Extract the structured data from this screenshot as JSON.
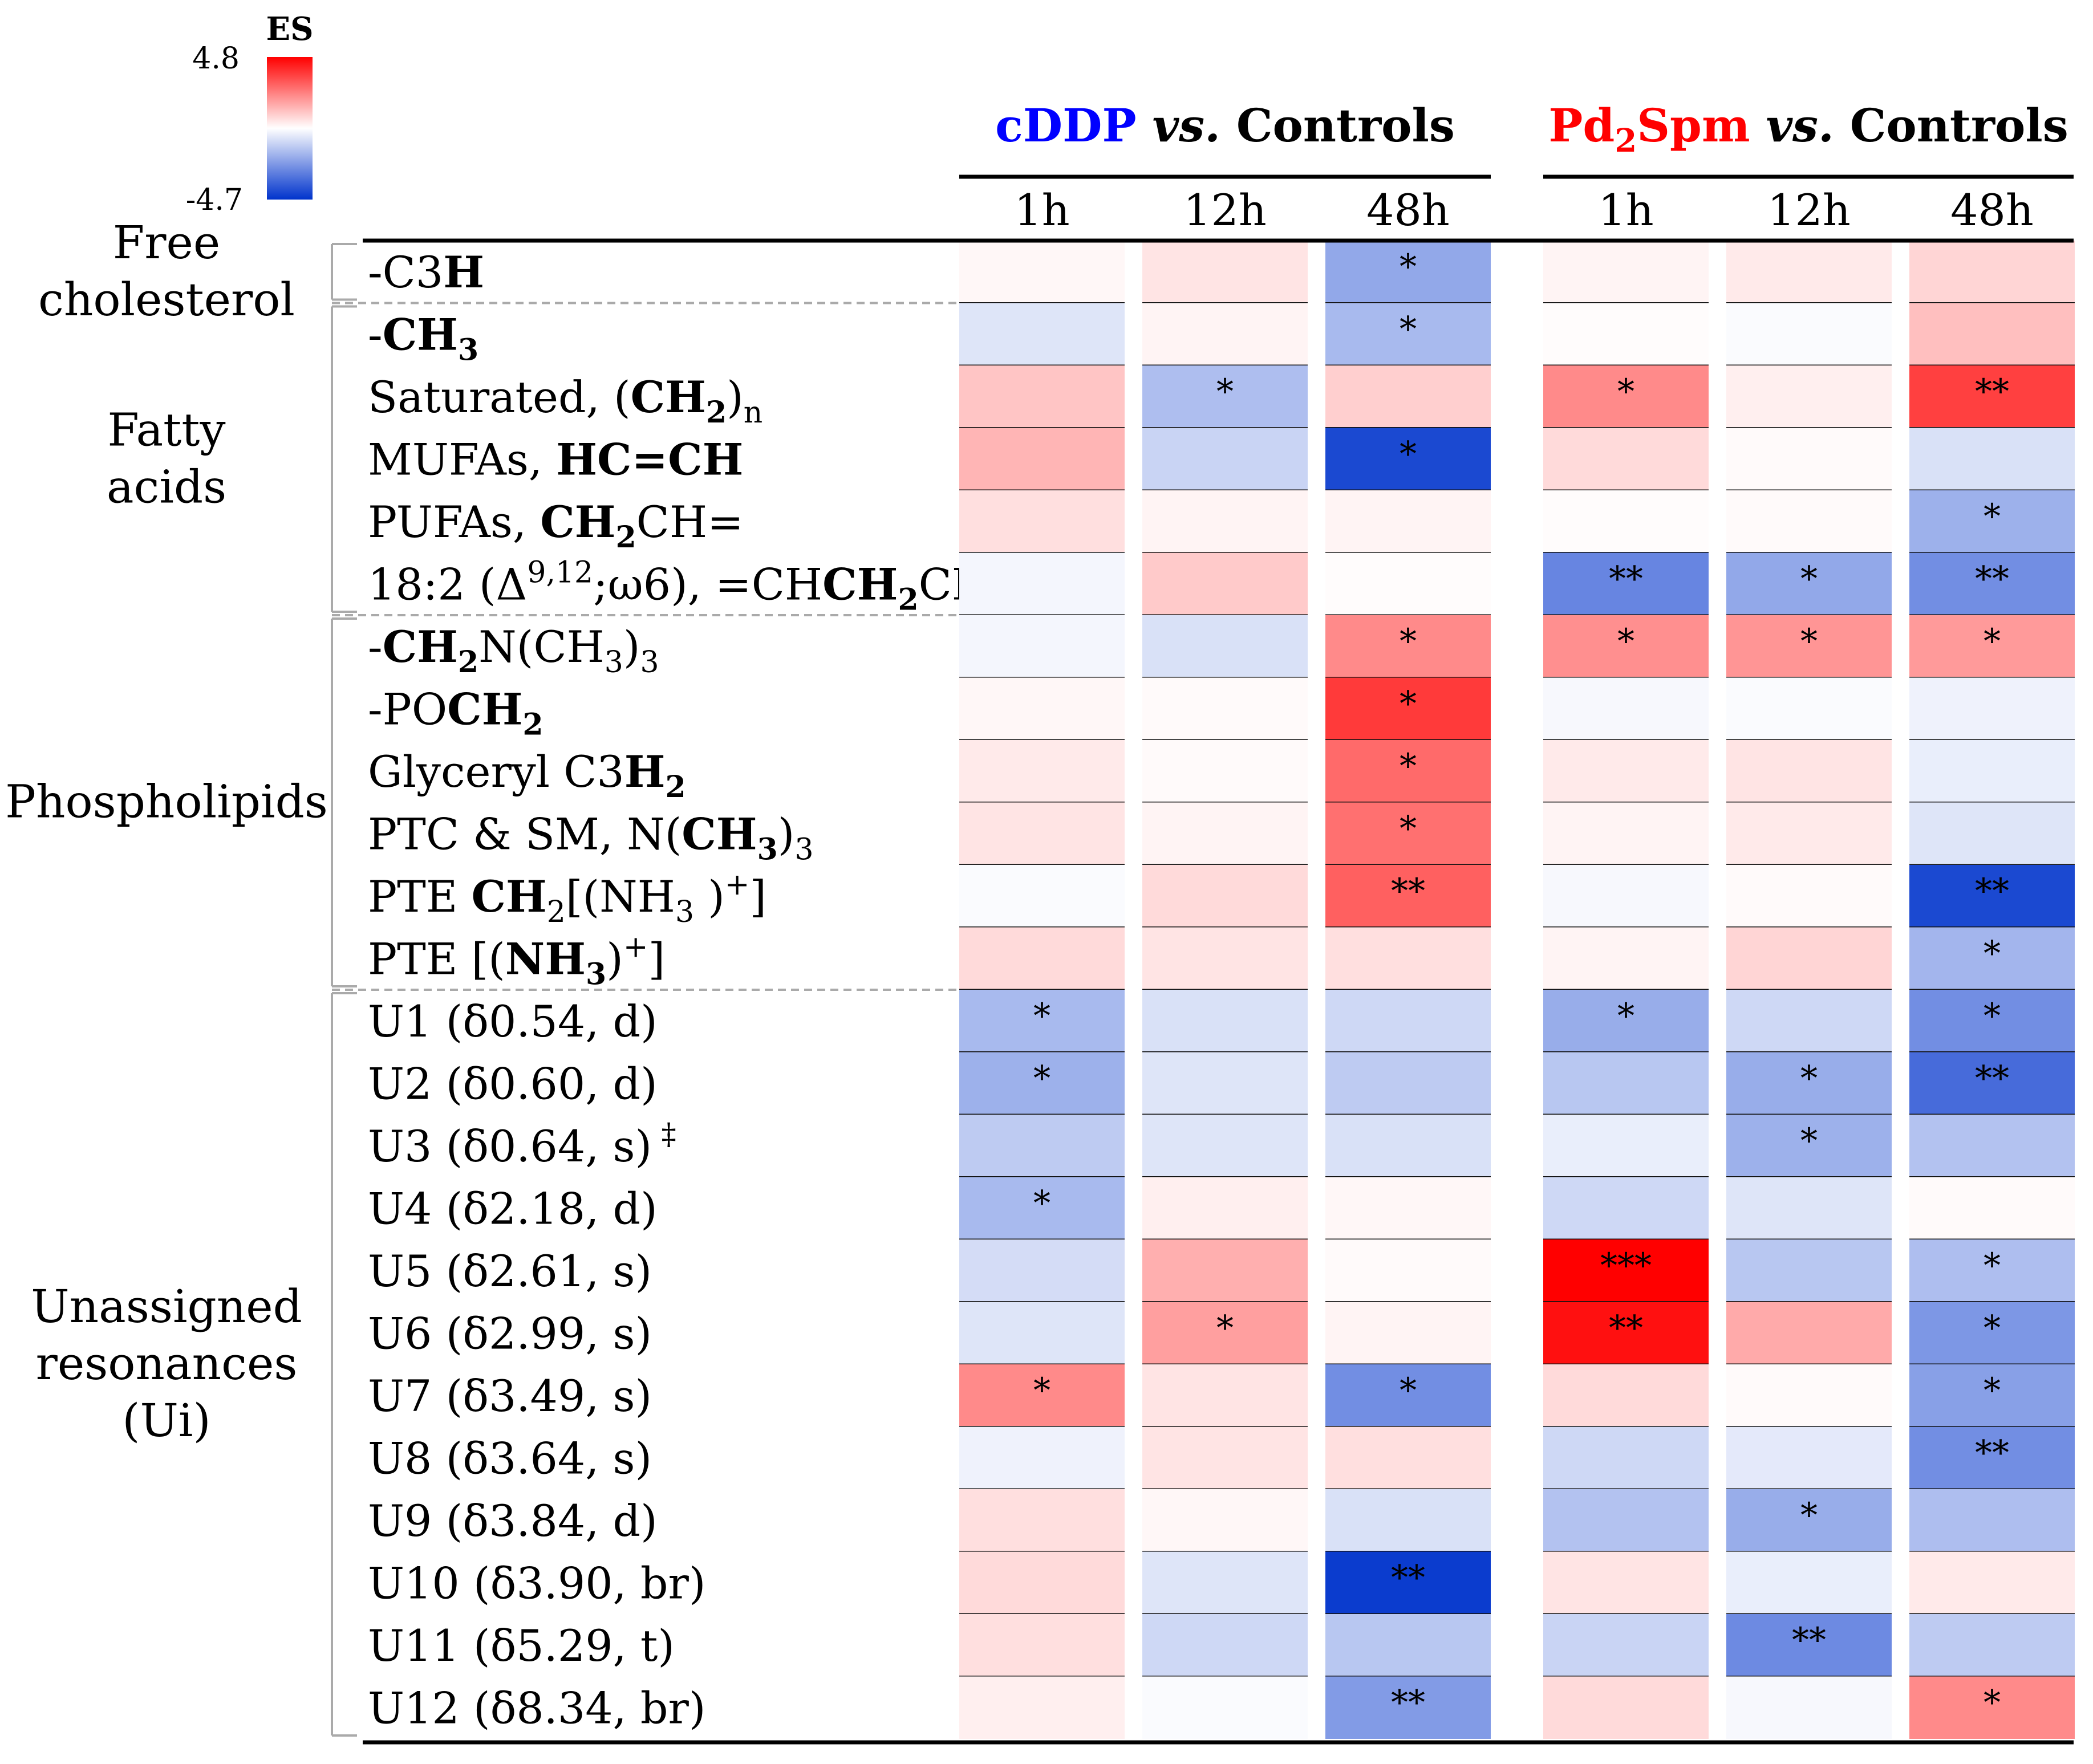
{
  "chart_data": {
    "type": "heatmap",
    "legend": {
      "title": "ES",
      "max": 4.8,
      "min": -4.7,
      "max_label": "4.8",
      "min_label": "-4.7",
      "colors": {
        "high": "#ff0000",
        "mid": "#ffffff",
        "low": "#0033cc"
      }
    },
    "groups": [
      {
        "drug": "cDDP",
        "sep": "vs.",
        "ref": "Controls",
        "drug_color": "#0000ff",
        "columns": [
          "1h",
          "12h",
          "48h"
        ]
      },
      {
        "drug": "Pd",
        "drug_sub": "2",
        "drug_rest": "Spm",
        "sep": "vs.",
        "ref": "Controls",
        "drug_color": "#ff0000",
        "columns": [
          "1h",
          "12h",
          "48h"
        ]
      }
    ],
    "categories": [
      {
        "lines": [
          "Free",
          "cholesterol"
        ],
        "rows": [
          0,
          0
        ]
      },
      {
        "lines": [
          "Fatty",
          "acids"
        ],
        "rows": [
          1,
          5
        ]
      },
      {
        "lines": [
          "Phospholipids"
        ],
        "rows": [
          6,
          11
        ]
      },
      {
        "lines": [
          "Unassigned",
          "resonances",
          "(Ui)"
        ],
        "rows": [
          12,
          23
        ]
      }
    ],
    "rows": [
      {
        "parts": [
          {
            "t": "-C3"
          },
          {
            "t": "H",
            "b": true
          }
        ],
        "values": [
          0.15,
          0.5,
          -2.0,
          0.2,
          0.4,
          0.8
        ],
        "stars": [
          "",
          "",
          "*",
          "",
          "",
          ""
        ]
      },
      {
        "parts": [
          {
            "t": "-"
          },
          {
            "t": "CH",
            "b": true
          },
          {
            "t": "3",
            "sub": true,
            "b": true
          }
        ],
        "values": [
          -0.6,
          0.2,
          -1.6,
          0.05,
          -0.1,
          1.2
        ],
        "stars": [
          "",
          "",
          "*",
          "",
          "",
          ""
        ]
      },
      {
        "parts": [
          {
            "t": "Saturated, ("
          },
          {
            "t": "CH",
            "b": true
          },
          {
            "t": "2",
            "sub": true,
            "b": true
          },
          {
            "t": ")"
          },
          {
            "t": "n",
            "sub": true
          }
        ],
        "values": [
          1.1,
          -1.5,
          0.9,
          2.2,
          0.3,
          3.6
        ],
        "stars": [
          "",
          "*",
          "",
          "*",
          "",
          "**"
        ]
      },
      {
        "parts": [
          {
            "t": "MUFAs, "
          },
          {
            "t": "HC=CH",
            "b": true
          }
        ],
        "values": [
          1.4,
          -1.0,
          -4.2,
          0.7,
          0.1,
          -0.7
        ],
        "stars": [
          "",
          "",
          "*",
          "",
          "",
          ""
        ]
      },
      {
        "parts": [
          {
            "t": "PUFAs, "
          },
          {
            "t": "CH",
            "b": true
          },
          {
            "t": "2",
            "sub": true,
            "b": true
          },
          {
            "t": "CH="
          }
        ],
        "values": [
          0.6,
          0.2,
          0.2,
          0.05,
          0.1,
          -1.8
        ],
        "stars": [
          "",
          "",
          "",
          "",
          "",
          "*"
        ]
      },
      {
        "parts": [
          {
            "t": "18:2 (Δ"
          },
          {
            "t": "9,12",
            "sup": true
          },
          {
            "t": ";ω6), =CH"
          },
          {
            "t": "CH",
            "b": true
          },
          {
            "t": "2",
            "sub": true,
            "b": true
          },
          {
            "t": "CH="
          }
        ],
        "values": [
          -0.2,
          1.0,
          0.05,
          -2.8,
          -2.0,
          -2.6
        ],
        "stars": [
          "",
          "",
          "",
          "**",
          "*",
          "**"
        ]
      },
      {
        "parts": [
          {
            "t": "-"
          },
          {
            "t": "CH",
            "b": true
          },
          {
            "t": "2",
            "sub": true,
            "b": true
          },
          {
            "t": "N(CH"
          },
          {
            "t": "3",
            "sub": true
          },
          {
            "t": ")"
          },
          {
            "t": "3",
            "sub": true
          }
        ],
        "values": [
          -0.2,
          -0.7,
          2.2,
          2.1,
          2.0,
          1.9
        ],
        "stars": [
          "",
          "",
          "*",
          "*",
          "*",
          "*"
        ]
      },
      {
        "parts": [
          {
            "t": "-PO"
          },
          {
            "t": "CH",
            "b": true
          },
          {
            "t": "2",
            "sub": true,
            "b": true
          }
        ],
        "values": [
          0.15,
          0.1,
          3.7,
          -0.15,
          -0.1,
          -0.3
        ],
        "stars": [
          "",
          "",
          "*",
          "",
          "",
          ""
        ]
      },
      {
        "parts": [
          {
            "t": "Glyceryl C3"
          },
          {
            "t": "H",
            "b": true
          },
          {
            "t": "2",
            "sub": true,
            "b": true
          }
        ],
        "values": [
          0.4,
          0.1,
          2.8,
          0.4,
          0.5,
          -0.4
        ],
        "stars": [
          "",
          "",
          "*",
          "",
          "",
          ""
        ]
      },
      {
        "parts": [
          {
            "t": "PTC & SM, N("
          },
          {
            "t": "CH",
            "b": true
          },
          {
            "t": "3",
            "sub": true,
            "b": true
          },
          {
            "t": ")"
          },
          {
            "t": "3",
            "sub": true
          }
        ],
        "values": [
          0.5,
          0.2,
          2.7,
          0.2,
          0.4,
          -0.6
        ],
        "stars": [
          "",
          "",
          "*",
          "",
          "",
          ""
        ]
      },
      {
        "parts": [
          {
            "t": "PTE "
          },
          {
            "t": "CH",
            "b": true
          },
          {
            "t": "2",
            "sub": true
          },
          {
            "t": "[(NH"
          },
          {
            "t": "3",
            "sub": true
          },
          {
            "t": " )"
          },
          {
            "t": "+",
            "sup": true
          },
          {
            "t": "]"
          }
        ],
        "values": [
          -0.1,
          0.7,
          3.0,
          -0.15,
          0.1,
          -4.2
        ],
        "stars": [
          "",
          "",
          "**",
          "",
          "",
          "**"
        ]
      },
      {
        "parts": [
          {
            "t": "PTE [("
          },
          {
            "t": "NH",
            "b": true
          },
          {
            "t": "3",
            "sub": true,
            "b": true
          },
          {
            "t": ")"
          },
          {
            "t": "+",
            "sup": true
          },
          {
            "t": "]"
          }
        ],
        "values": [
          0.7,
          0.5,
          0.6,
          0.2,
          0.8,
          -1.7
        ],
        "stars": [
          "",
          "",
          "",
          "",
          "",
          "*"
        ]
      },
      {
        "parts": [
          {
            "t": "U1 (δ0.54, d)"
          }
        ],
        "values": [
          -1.6,
          -0.7,
          -0.9,
          -1.9,
          -0.9,
          -2.6
        ],
        "stars": [
          "*",
          "",
          "",
          "*",
          "",
          "*"
        ]
      },
      {
        "parts": [
          {
            "t": "U2 (δ0.60, d)"
          }
        ],
        "values": [
          -1.8,
          -0.6,
          -1.2,
          -1.3,
          -1.9,
          -3.4
        ],
        "stars": [
          "*",
          "",
          "",
          "",
          "*",
          "**"
        ]
      },
      {
        "parts": [
          {
            "t": "U3 (δ0.64, s)"
          },
          {
            "t": " ‡",
            "sup": true
          }
        ],
        "values": [
          -1.2,
          -0.6,
          -0.7,
          -0.4,
          -1.8,
          -1.4
        ],
        "stars": [
          "",
          "",
          "",
          "",
          "*",
          ""
        ]
      },
      {
        "parts": [
          {
            "t": "U4 (δ2.18, d)"
          }
        ],
        "values": [
          -1.6,
          0.3,
          0.15,
          -0.9,
          -0.6,
          0.1
        ],
        "stars": [
          "*",
          "",
          "",
          "",
          "",
          ""
        ]
      },
      {
        "parts": [
          {
            "t": "U5 (δ2.61, s)"
          }
        ],
        "values": [
          -0.8,
          1.5,
          0.1,
          4.8,
          -1.3,
          -1.5
        ],
        "stars": [
          "",
          "",
          "",
          "***",
          "",
          "*"
        ]
      },
      {
        "parts": [
          {
            "t": "U6 (δ2.99, s)"
          }
        ],
        "values": [
          -0.6,
          1.8,
          0.2,
          4.5,
          1.6,
          -2.4
        ],
        "stars": [
          "",
          "*",
          "",
          "**",
          "",
          "*"
        ]
      },
      {
        "parts": [
          {
            "t": "U7 (δ3.49, s)"
          }
        ],
        "values": [
          2.2,
          0.5,
          -2.6,
          0.7,
          0.1,
          -2.2
        ],
        "stars": [
          "*",
          "",
          "*",
          "",
          "",
          "*"
        ]
      },
      {
        "parts": [
          {
            "t": "U8 (δ3.64, s)"
          }
        ],
        "values": [
          -0.3,
          0.5,
          0.6,
          -0.9,
          -0.5,
          -2.6
        ],
        "stars": [
          "",
          "",
          "",
          "",
          "",
          "**"
        ]
      },
      {
        "parts": [
          {
            "t": "U9 (δ3.84, d)"
          }
        ],
        "values": [
          0.6,
          0.15,
          -0.7,
          -1.4,
          -1.9,
          -1.5
        ],
        "stars": [
          "",
          "",
          "",
          "",
          "*",
          ""
        ]
      },
      {
        "parts": [
          {
            "t": "U10 (δ3.90, br)"
          }
        ],
        "values": [
          0.7,
          -0.6,
          -4.5,
          0.5,
          -0.4,
          0.4
        ],
        "stars": [
          "",
          "",
          "**",
          "",
          "",
          ""
        ]
      },
      {
        "parts": [
          {
            "t": "U11 (δ5.29, t)"
          }
        ],
        "values": [
          0.6,
          -0.9,
          -1.3,
          -1.0,
          -2.7,
          -1.2
        ],
        "stars": [
          "",
          "",
          "",
          "",
          "**",
          ""
        ]
      },
      {
        "parts": [
          {
            "t": "U12 (δ8.34, br)"
          }
        ],
        "values": [
          0.3,
          -0.1,
          -2.3,
          0.7,
          -0.15,
          2.2
        ],
        "stars": [
          "",
          "",
          "**",
          "",
          "",
          "*"
        ]
      }
    ]
  }
}
